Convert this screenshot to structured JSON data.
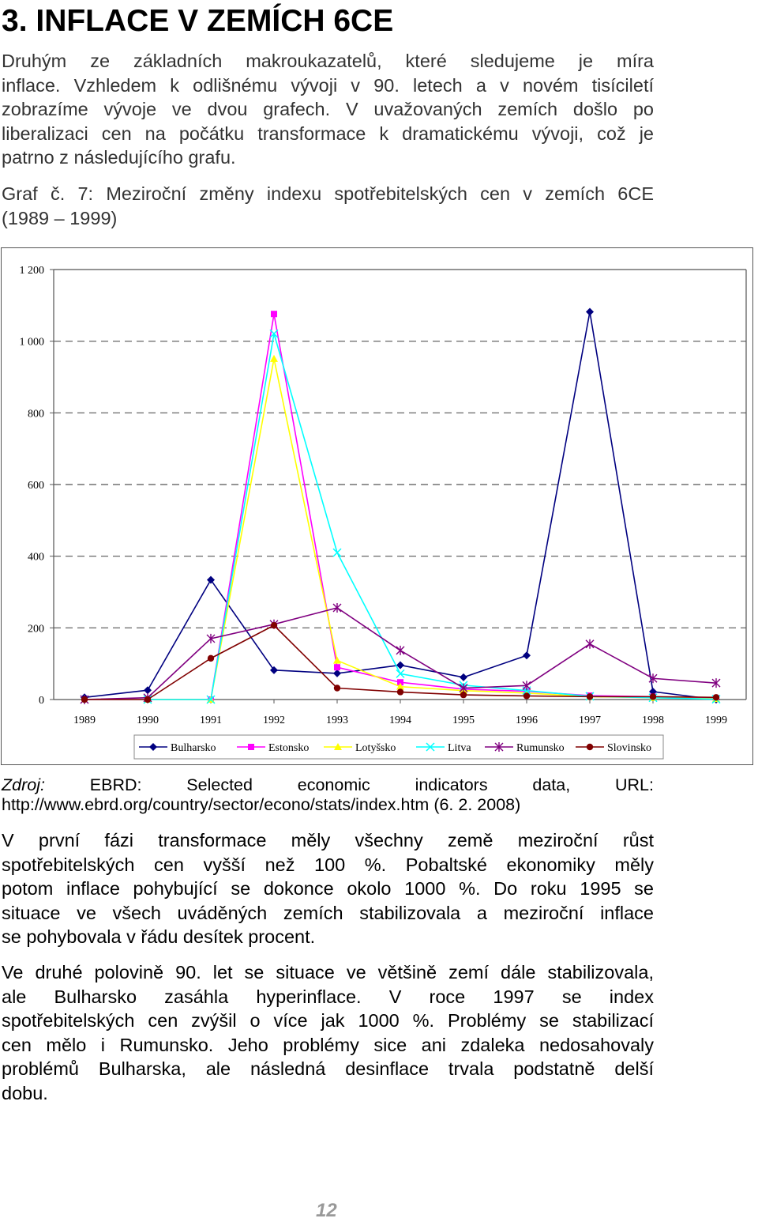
{
  "heading": "3. INFLACE V ZEMÍCH 6CE",
  "intro_lines": [
    "Druhým ze základních makroukazatelů, které sledujeme je míra",
    "inflace. Vzhledem k odlišnému vývoji v 90. letech a v novém tisíciletí",
    "zobrazíme vývoje ve dvou grafech. V uvažovaných zemích došlo po",
    "liberalizaci cen na počátku transformace k dramatickému vývoji, což je",
    "patrno z následujícího grafu."
  ],
  "caption_lines": [
    "Graf č. 7: Meziroční změny indexu spotřebitelských cen v zemích 6CE",
    "(1989 – 1999)"
  ],
  "source": {
    "label": "Zdroj:",
    "line1_rest": [
      "EBRD:",
      "Selected",
      "economic",
      "indicators",
      "data,",
      "URL:"
    ],
    "line2": "http://www.ebrd.org/country/sector/econo/stats/index.htm (6. 2. 2008)"
  },
  "para2_lines": [
    "V první fázi transformace měly všechny země meziroční růst",
    "spotřebitelských cen vyšší než 100 %. Pobaltské ekonomiky měly",
    "potom inflace pohybující se dokonce okolo 1000 %. Do roku 1995 se",
    "situace ve všech uváděných zemích stabilizovala a meziroční inflace",
    "se pohybovala v řádu desítek procent."
  ],
  "para3_lines": [
    "Ve druhé polovině 90. let se situace ve většině zemí dále stabilizovala,",
    "ale Bulharsko zasáhla hyperinflace. V roce 1997 se index",
    "spotřebitelských cen zvýšil o více jak 1000 %. Problémy se stabilizací",
    "cen mělo i Rumunsko. Jeho problémy sice ani zdaleka nedosahovaly",
    "problémů Bulharska, ale následná desinflace trvala podstatně delší",
    "dobu."
  ],
  "page_number": "12",
  "chart_data": {
    "type": "line",
    "x": [
      "1989",
      "1990",
      "1991",
      "1992",
      "1993",
      "1994",
      "1995",
      "1996",
      "1997",
      "1998",
      "1999"
    ],
    "ylim": [
      0,
      1200
    ],
    "y_ticks": [
      0,
      200,
      400,
      600,
      800,
      1000,
      1200
    ],
    "y_tick_labels": [
      "0",
      "200",
      "400",
      "600",
      "800",
      "1 000",
      "1 200"
    ],
    "grid": "horizontal dashed",
    "legend_position": "bottom",
    "series": [
      {
        "name": "Bulharsko",
        "color": "#000080",
        "marker": "diamond",
        "values": [
          6,
          26,
          334,
          82,
          73,
          96,
          62,
          123,
          1082,
          22,
          0
        ]
      },
      {
        "name": "Estonsko",
        "color": "#ff00ff",
        "marker": "square",
        "values": [
          null,
          0,
          0,
          1076,
          90,
          48,
          29,
          23,
          11,
          8,
          3
        ]
      },
      {
        "name": "Lotyšsko",
        "color": "#ffff00",
        "marker": "triangle",
        "values": [
          null,
          0,
          0,
          951,
          109,
          36,
          25,
          18,
          8,
          5,
          2
        ]
      },
      {
        "name": "Litva",
        "color": "#00ffff",
        "marker": "x",
        "values": [
          null,
          0,
          0,
          1021,
          410,
          72,
          40,
          25,
          9,
          5,
          1
        ]
      },
      {
        "name": "Rumunsko",
        "color": "#800080",
        "marker": "star",
        "values": [
          0,
          5,
          170,
          210,
          256,
          137,
          32,
          39,
          155,
          59,
          46
        ]
      },
      {
        "name": "Slovinsko",
        "color": "#800000",
        "marker": "circle",
        "values": [
          0,
          0,
          115,
          207,
          32,
          21,
          13,
          10,
          8,
          8,
          6
        ]
      }
    ]
  }
}
